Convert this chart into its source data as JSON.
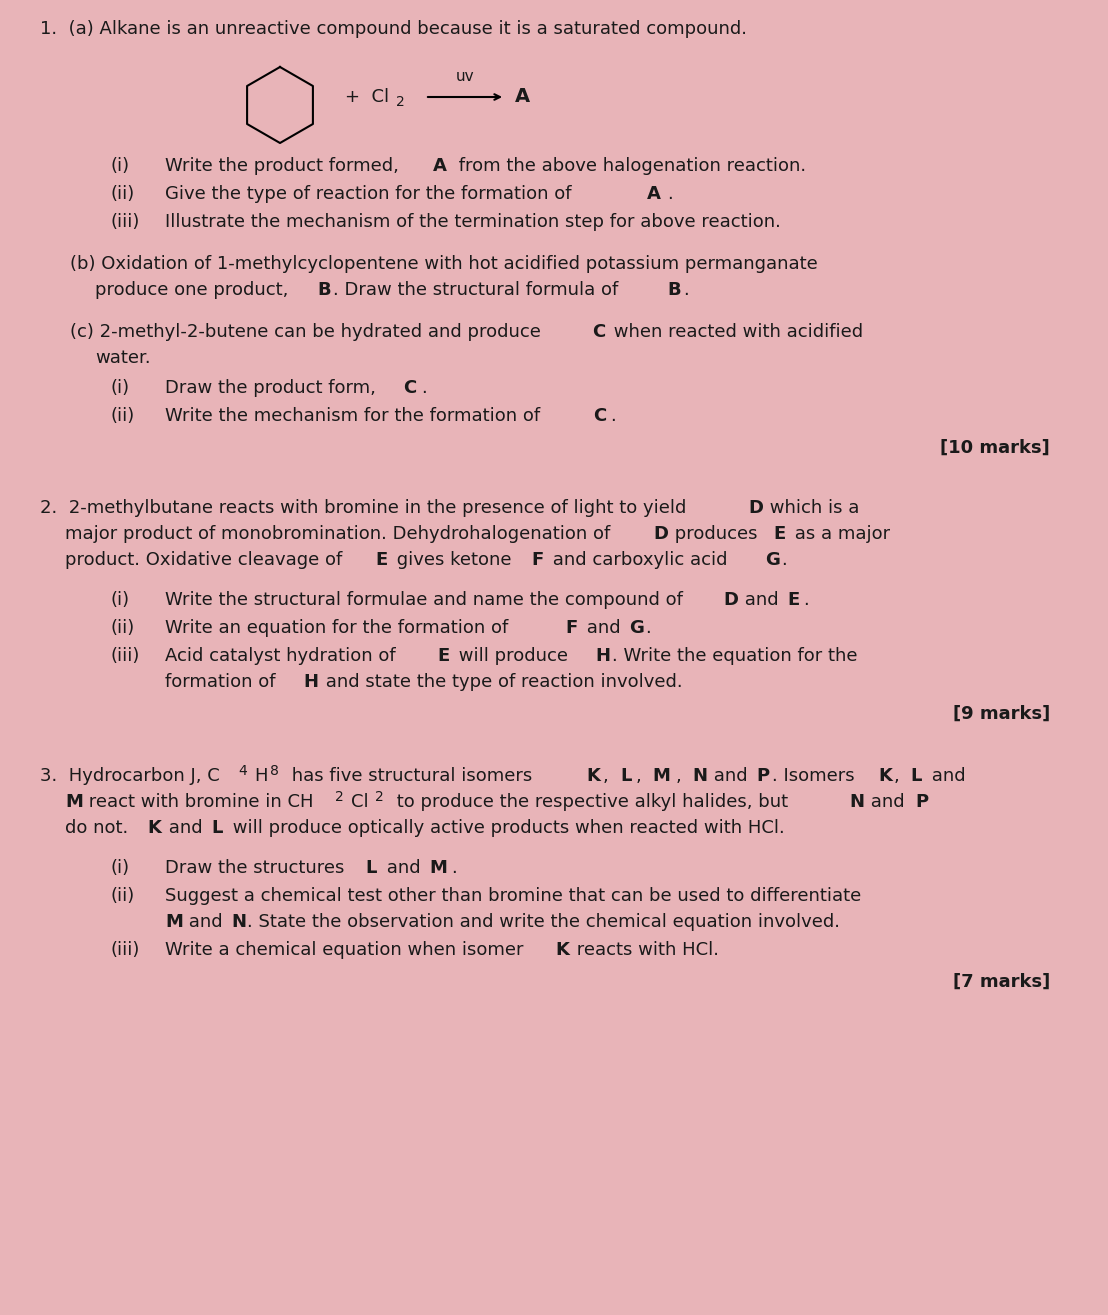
{
  "bg_color": "#e8b4b8",
  "text_color": "#1a1a1a",
  "title_fontsize": 13,
  "body_fontsize": 13,
  "q1_header": "1.  (a) Alkane is an unreactive compound because it is a saturated compound.",
  "q1_a_i": "(i)       Write the product formed, À from the above halogenation reaction.",
  "q1_a_ii": "(ii)      Give the type of reaction for the formation of À.",
  "q1_a_iii": "(iii)     Illustrate the mechanism of the termination step for above reaction.",
  "q1_b": "(b) Oxidation of 1-methylcyclopentene with hot acidified potassium permanganate\n      produce one product, B. Draw the structural formula of B.",
  "q1_c": "(c) 2-methyl-2-butene can be hydrated and produce C when reacted with acidified\n      water.",
  "q1_c_i": "(i)       Draw the product form, C.",
  "q1_c_ii": "(ii)      Write the mechanism for the formation of C.",
  "q1_marks": "[10 marks]",
  "q2_header": "2.  2-methylbutane reacts with bromine in the presence of light to yield D which is a\n     major product of monobromination. Dehydrohalogenation of D produces E as a major\n     product. Oxidative cleavage of E gives ketone F and carboxylic acid G.",
  "q2_i": "(i)       Write the structural formulae and name the compound of D and E.",
  "q2_ii": "(ii)      Write an equation for the formation of F and G.",
  "q2_iii": "(iii)     Acid catalyst hydration of E will produce H. Write the equation for the\n           formation of H and state the type of reaction involved.",
  "q2_marks": "[9 marks]",
  "q3_header": "3.  Hydrocarbon J, C₄H₈ has five structural isomers K, L, M, N and P. Isomers K, L and\n     M react with bromine in CH₂Cl₂ to produce the respective alkyl halides, but N and P\n     do not. K and L will produce optically active products when reacted with HCl.",
  "q3_i": "(i)       Draw the structures L and M.",
  "q3_ii": "(ii)      Suggest a chemical test other than bromine that can be used to differentiate\n           M and N. State the observation and write the chemical equation involved.",
  "q3_iii": "(iii)     Write a chemical equation when isomer K reacts with HCl.",
  "q3_marks": "[7 marks]"
}
